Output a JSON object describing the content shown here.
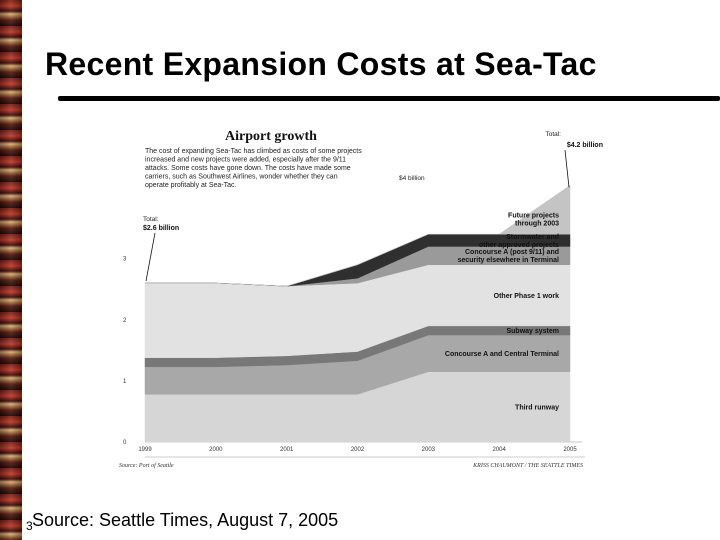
{
  "slide": {
    "title": "Recent Expansion Costs at Sea-Tac",
    "number": "3",
    "source": "Source: Seattle Times, August 7, 2005"
  },
  "chart_data": {
    "type": "area",
    "stacked": true,
    "title": "Airport growth",
    "intro": [
      "The cost of expanding Sea-Tac has climbed as costs of some projects",
      "increased and new projects were added, especially after the 9/11",
      "attacks. Some costs have gone down. The costs have made some",
      "carriers, such as Southwest Airlines, wonder whether they can",
      "operate profitably at Sea-Tac."
    ],
    "x": [
      "1999",
      "2000",
      "2001",
      "2002",
      "2003",
      "2004",
      "2005"
    ],
    "ylim": [
      0,
      4.5
    ],
    "yticks": [
      "0",
      "1",
      "2",
      "3"
    ],
    "series": [
      {
        "name": "Third runway",
        "color": "#d6d6d6",
        "values": [
          0.78,
          0.78,
          0.78,
          0.78,
          1.15,
          1.15,
          1.15
        ]
      },
      {
        "name": "Concourse A and Central Terminal",
        "color": "#a8a8a8",
        "values": [
          0.45,
          0.45,
          0.48,
          0.55,
          0.6,
          0.6,
          0.6
        ]
      },
      {
        "name": "Subway system",
        "color": "#787878",
        "values": [
          0.15,
          0.15,
          0.15,
          0.15,
          0.15,
          0.15,
          0.15
        ]
      },
      {
        "name": "Other Phase 1 work",
        "color": "#e2e2e2",
        "values": [
          1.22,
          1.22,
          1.14,
          1.12,
          1.0,
          1.0,
          1.0
        ]
      },
      {
        "name": "Concourse A (post 9/11) and security elsewhere in Terminal",
        "color": "#9a9a9a",
        "values": [
          0,
          0,
          0,
          0.08,
          0.3,
          0.3,
          0.3
        ]
      },
      {
        "name": "Stormwater and other approved projects",
        "color": "#2f2f2f",
        "values": [
          0,
          0,
          0,
          0.22,
          0.2,
          0.2,
          0.2
        ]
      },
      {
        "name": "Future projects through 2003",
        "color": "#c4c4c4",
        "values": [
          0,
          0,
          0,
          0,
          0,
          0,
          0.8
        ]
      }
    ],
    "series_labels": [
      [
        "Third runway"
      ],
      [
        "Concourse A and Central Terminal"
      ],
      [
        "Subway system"
      ],
      [
        "Other Phase 1 work"
      ],
      [
        "Concourse A (post 9/11) and",
        "security elsewhere in Terminal"
      ],
      [
        "Stormwater and",
        "other approved projects"
      ],
      [
        "Future projects",
        "through 2003"
      ]
    ],
    "annotations": {
      "start_total_label": "Total:",
      "start_total_value": "$2.6 billion",
      "end_total_label": "Total:",
      "end_total_value": "$4.2 billion",
      "mid_marker": "$4 billion"
    },
    "footer_source": "Source: Port of Seattle",
    "footer_credit": "KRISS CHAUMONT / THE SEATTLE TIMES"
  }
}
